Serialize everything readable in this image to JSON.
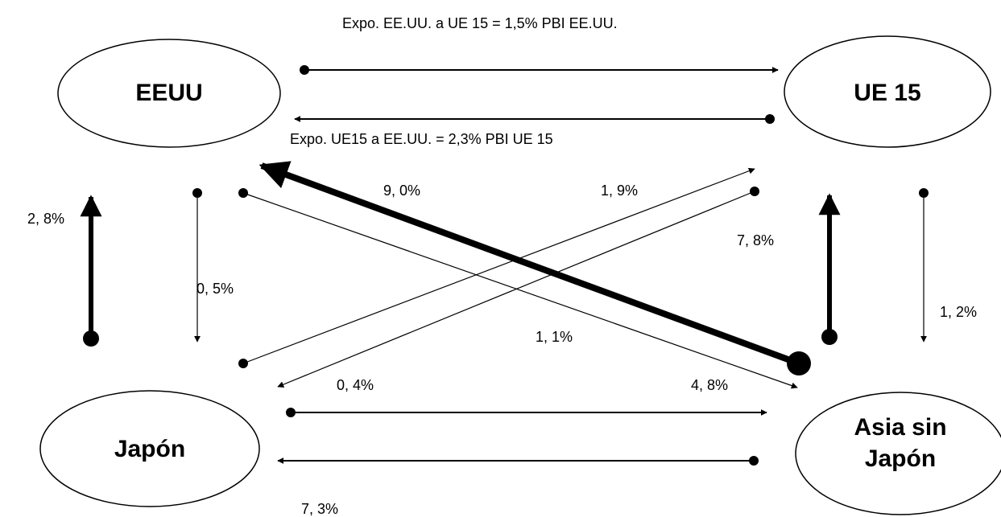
{
  "nodes": {
    "eeuu": "EEUU",
    "ue15": "UE 15",
    "japon": "Japón",
    "asia_line1": "Asia sin",
    "asia_line2": "Japón"
  },
  "labels": {
    "top_note": "Expo. EE.UU. a UE 15 = 1,5% PBI EE.UU.",
    "mid_note": "Expo. UE15 a EE.UU.  = 2,3% PBI UE 15",
    "japon_to_eeuu": "2, 8%",
    "eeuu_to_japon": "0, 5%",
    "asia_to_eeuu": "9, 0%",
    "japon_to_ue15": "1, 9%",
    "asia_to_ue15": "7, 8%",
    "ue15_to_asia": "1, 2%",
    "eeuu_to_asia": "1, 1%",
    "ue15_to_japon": "0, 4%",
    "japon_to_asia": "4, 8%",
    "asia_to_japon": "7, 3%"
  },
  "colors": {
    "stroke": "#000000",
    "background": "#ffffff"
  }
}
